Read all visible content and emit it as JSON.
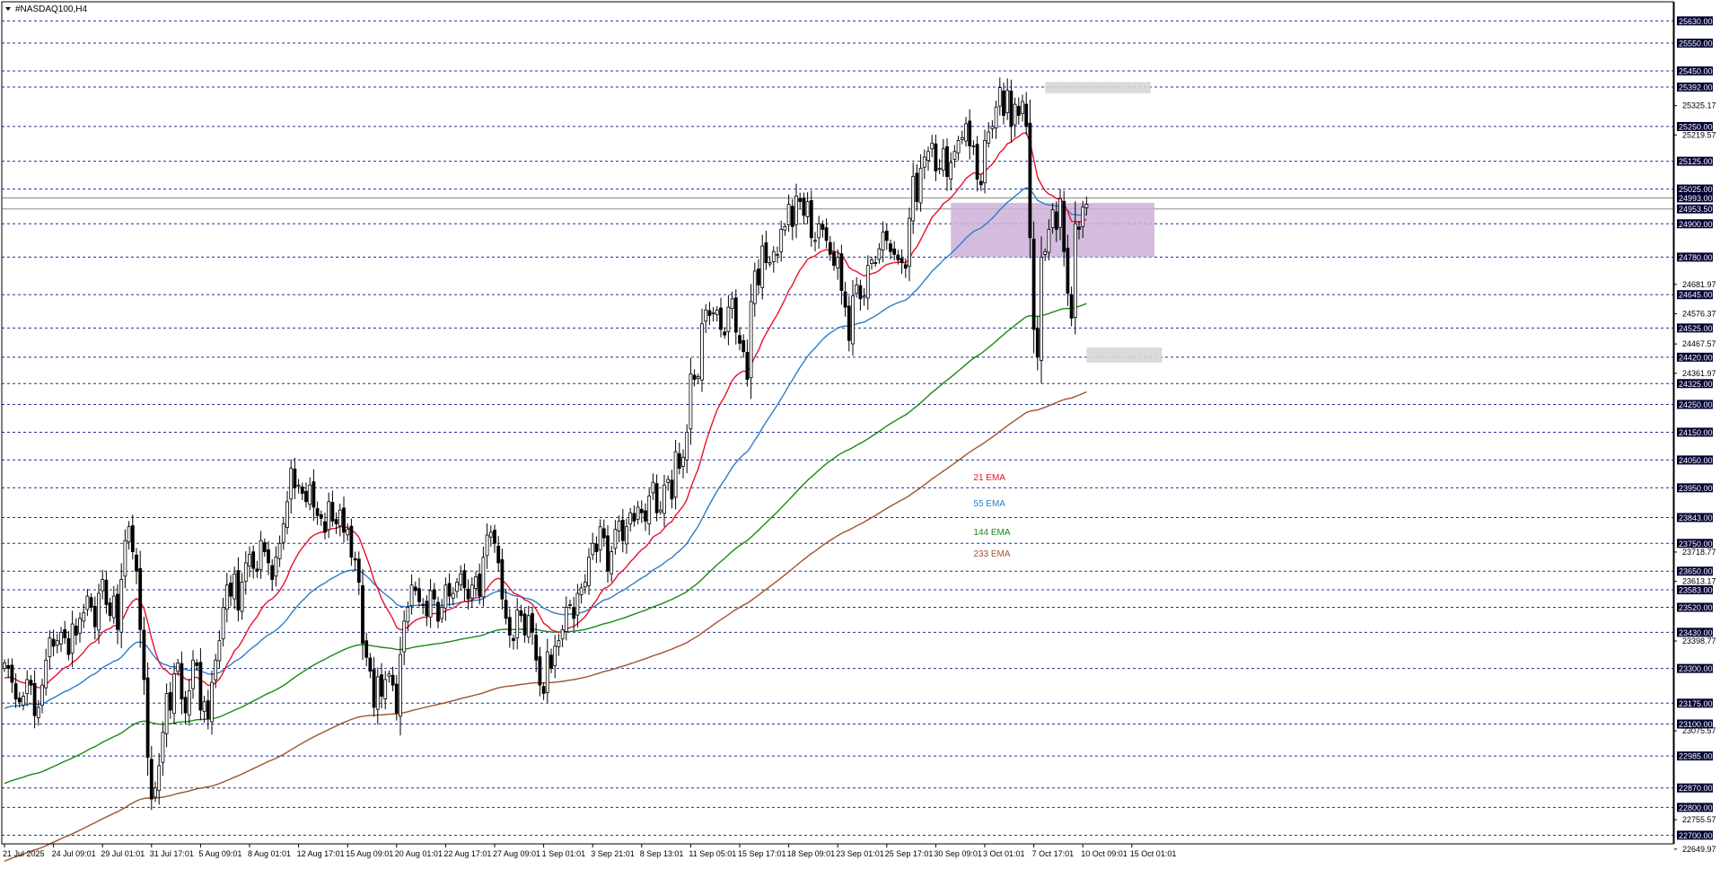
{
  "window": {
    "title": "#NASDAQ100,H4",
    "menu_icon": "triangle-down-icon"
  },
  "colors": {
    "ema21": "#e8112d",
    "ema55": "#2f7cc4",
    "ema144": "#1a8a12",
    "ema233": "#a0522d",
    "candle": "#000000",
    "level_line": "#1f2f9c",
    "price_tag_bg": "#000033",
    "zone_purple": "#cdb0d8",
    "zone_gray": "#d6d6d6"
  },
  "chart_data": {
    "type": "candlestick",
    "symbol": "#NASDAQ100",
    "timeframe": "H4",
    "ylim": [
      22630,
      25660
    ],
    "grid": false,
    "x_labels": [
      "21 Jul 2025",
      "24 Jul 09:01",
      "29 Jul 01:01",
      "31 Jul 17:01",
      "5 Aug 09:01",
      "8 Aug 01:01",
      "12 Aug 17:01",
      "15 Aug 09:01",
      "20 Aug 01:01",
      "22 Aug 17:01",
      "27 Aug 09:01",
      "1 Sep 01:01",
      "3 Sep 21:01",
      "8 Sep 13:01",
      "11 Sep 05:01",
      "15 Sep 17:01",
      "18 Sep 09:01",
      "23 Sep 01:01",
      "25 Sep 17:01",
      "30 Sep 09:01",
      "3 Oct 01:01",
      "7 Oct 17:01",
      "10 Oct 09:01",
      "15 Oct 01:01"
    ],
    "price_axis_labels": [
      "25325.17",
      "25219.57",
      "24681.97",
      "24576.37",
      "24467.57",
      "24361.97",
      "23718.77",
      "23613.17",
      "23398.77",
      "23075.57",
      "22755.57",
      "22649.97"
    ],
    "tagged_levels": [
      "25630.00",
      "25550.00",
      "25450.00",
      "25392.00",
      "25250.00",
      "25125.00",
      "25025.00",
      "24993.00",
      "24953.50",
      "24900.00",
      "24780.00",
      "24645.00",
      "24525.00",
      "24420.00",
      "24325.00",
      "24250.00",
      "24150.00",
      "24050.00",
      "23950.00",
      "23843.00",
      "23750.00",
      "23650.00",
      "23583.00",
      "23520.00",
      "23430.00",
      "23300.00",
      "23175.00",
      "23100.00",
      "22985.00",
      "22870.00",
      "22800.00",
      "22700.00"
    ],
    "dashed_levels": [
      25630,
      25550,
      25450,
      25392,
      25250,
      25125,
      25025,
      24900,
      24780,
      24645,
      24525,
      24420,
      24325,
      24250,
      24150,
      24050,
      23950,
      23843,
      23750,
      23650,
      23583,
      23520,
      23430,
      23300,
      23175,
      23100,
      22985,
      22870,
      22800,
      22700
    ],
    "solid_levels": [
      24993,
      24953.5
    ],
    "zones": [
      {
        "kind": "purple",
        "x_start_index": 251,
        "x_end_index": 305,
        "low": 24780,
        "high": 24975
      },
      {
        "kind": "gray",
        "x_start_index": 276,
        "x_end_index": 304,
        "low": 25370,
        "high": 25410
      },
      {
        "kind": "gray",
        "x_start_index": 287,
        "x_end_index": 307,
        "low": 24400,
        "high": 24455
      }
    ],
    "ema_labels": [
      {
        "text": "21 EMA",
        "series": "ema21"
      },
      {
        "text": "55 EMA",
        "series": "ema55"
      },
      {
        "text": "144 EMA",
        "series": "ema144"
      },
      {
        "text": "233 EMA",
        "series": "ema233"
      }
    ],
    "ema_label_anchor_index": 257,
    "ema_label_prices": [
      23990,
      23897,
      23793,
      23715
    ],
    "closes": [
      23320,
      23300,
      23250,
      23190,
      23180,
      23200,
      23260,
      23240,
      23130,
      23160,
      23240,
      23330,
      23410,
      23380,
      23400,
      23430,
      23410,
      23350,
      23460,
      23420,
      23480,
      23500,
      23560,
      23520,
      23450,
      23570,
      23620,
      23530,
      23490,
      23560,
      23440,
      23620,
      23760,
      23810,
      23720,
      23650,
      23440,
      23260,
      22980,
      22830,
      22870,
      22950,
      23070,
      23210,
      23150,
      23280,
      23320,
      23190,
      23140,
      23220,
      23330,
      23310,
      23150,
      23180,
      23120,
      23250,
      23330,
      23400,
      23520,
      23600,
      23560,
      23640,
      23510,
      23610,
      23680,
      23710,
      23660,
      23650,
      23760,
      23720,
      23680,
      23620,
      23700,
      23750,
      23820,
      23900,
      24020,
      23950,
      23960,
      23930,
      23900,
      23960,
      23880,
      23850,
      23840,
      23790,
      23900,
      23830,
      23820,
      23870,
      23790,
      23800,
      23700,
      23690,
      23610,
      23390,
      23340,
      23290,
      23160,
      23270,
      23200,
      23260,
      23280,
      23240,
      23140,
      23350,
      23470,
      23520,
      23600,
      23580,
      23540,
      23530,
      23490,
      23580,
      23550,
      23470,
      23520,
      23600,
      23560,
      23570,
      23610,
      23640,
      23590,
      23550,
      23600,
      23630,
      23560,
      23700,
      23780,
      23790,
      23750,
      23680,
      23550,
      23480,
      23420,
      23400,
      23510,
      23490,
      23420,
      23490,
      23430,
      23330,
      23240,
      23210,
      23360,
      23300,
      23380,
      23400,
      23440,
      23520,
      23530,
      23480,
      23570,
      23590,
      23610,
      23700,
      23750,
      23720,
      23810,
      23770,
      23650,
      23720,
      23800,
      23830,
      23760,
      23810,
      23860,
      23830,
      23880,
      23860,
      23830,
      23920,
      23970,
      23860,
      23870,
      23960,
      23980,
      23910,
      24080,
      24020,
      24060,
      24150,
      24360,
      24340,
      24350,
      24540,
      24590,
      24570,
      24580,
      24590,
      24520,
      24500,
      24600,
      24630,
      24510,
      24470,
      24440,
      24340,
      24620,
      24730,
      24680,
      24820,
      24760,
      24760,
      24800,
      24790,
      24880,
      24890,
      24970,
      24890,
      25000,
      24980,
      24930,
      24980,
      24850,
      24840,
      24900,
      24880,
      24840,
      24790,
      24750,
      24780,
      24660,
      24600,
      24480,
      24640,
      24680,
      24630,
      24640,
      24750,
      24770,
      24760,
      24810,
      24870,
      24840,
      24800,
      24790,
      24770,
      24760,
      24740,
      24920,
      25070,
      24980,
      25100,
      25140,
      25160,
      25190,
      25090,
      25100,
      25170,
      25070,
      25120,
      25160,
      25200,
      25210,
      25260,
      25180,
      25180,
      25060,
      25040,
      25200,
      25230,
      25250,
      25320,
      25390,
      25290,
      25380,
      25250,
      25330,
      25290,
      25340,
      25250,
      24850,
      24520,
      24420,
      24780,
      24800,
      24880,
      24950,
      24880,
      24990,
      24800,
      24650,
      24560,
      24900,
      24880,
      24960,
      24970
    ]
  }
}
